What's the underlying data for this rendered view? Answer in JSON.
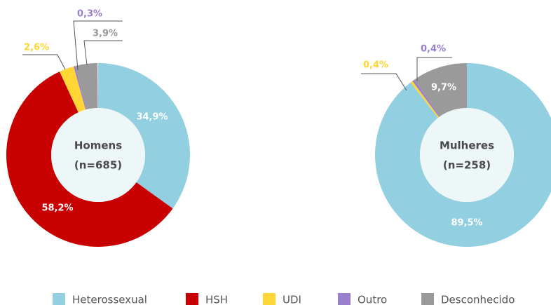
{
  "chart_data": [
    {
      "type": "donut",
      "center_label": [
        "Homens",
        "(n=685)"
      ],
      "values": [
        34.9,
        58.2,
        2.6,
        0.3,
        3.9
      ],
      "value_labels": [
        "34,9%",
        "58,2%",
        "2,6%",
        "0,3%",
        "3,9%"
      ],
      "colors": [
        "#92cfe0",
        "#c80000",
        "#ffd633",
        "#9b7fcf",
        "#9a9a9a"
      ]
    },
    {
      "type": "donut",
      "center_label": [
        "Mulheres",
        "(n=258)"
      ],
      "values": [
        89.5,
        0.4,
        0.4,
        9.7
      ],
      "value_labels": [
        "89,5%",
        "0,4%",
        "0,4%",
        "9,7%"
      ],
      "colors": [
        "#92cfe0",
        "#ffd633",
        "#9b7fcf",
        "#9a9a9a"
      ]
    }
  ],
  "legend": [
    {
      "name": "Heterossexual",
      "color": "#92cfe0"
    },
    {
      "name": "HSH",
      "color": "#c80000"
    },
    {
      "name": "UDI",
      "color": "#ffd633"
    },
    {
      "name": "Outro",
      "color": "#9b7fcf"
    },
    {
      "name": "Desconhecido",
      "color": "#9a9a9a"
    }
  ]
}
